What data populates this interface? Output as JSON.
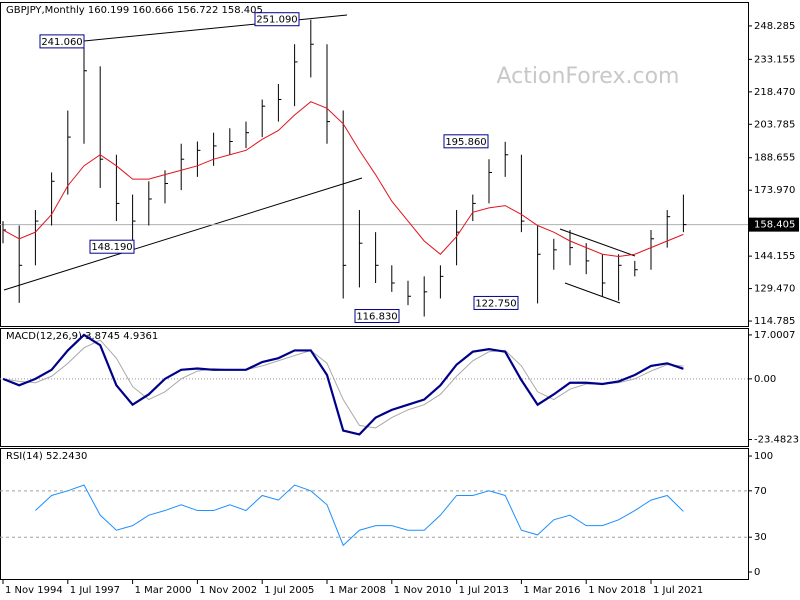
{
  "chart_data": [
    {
      "type": "ohlc",
      "title": "GBPJPY,Monthly  160.199 160.666 156.722 158.405",
      "watermark": "ActionForex.com",
      "color": "#000000",
      "categories": [
        "1 Nov 1994",
        null,
        null,
        null,
        "1 Jul 1997",
        null,
        null,
        null,
        "1 Mar 2000",
        null,
        null,
        null,
        "1 Nov 2002",
        null,
        null,
        null,
        "1 Jul 2005",
        null,
        null,
        null,
        "1 Mar 2008",
        null,
        null,
        null,
        "1 Nov 2010",
        null,
        null,
        null,
        "1 Jul 2013",
        null,
        null,
        null,
        "1 Mar 2016",
        null,
        null,
        null,
        "1 Nov 2018",
        null,
        null,
        null,
        "1 Jul 2021",
        null,
        null
      ],
      "high": [
        160,
        158,
        165,
        182,
        210,
        241.06,
        230,
        190,
        172,
        178,
        183,
        195,
        196,
        200,
        202,
        205,
        215,
        222,
        240,
        251.09,
        240,
        210,
        165,
        155,
        140,
        133,
        135,
        140,
        165,
        172,
        188,
        195.86,
        190,
        158,
        152,
        156,
        150,
        145,
        145,
        142,
        156,
        165,
        172
      ],
      "low": [
        150,
        123,
        140,
        158,
        172,
        195,
        175,
        160,
        148.19,
        158,
        168,
        174,
        180,
        185,
        190,
        193,
        198,
        205,
        212,
        225,
        195,
        125,
        130,
        132,
        128,
        122,
        116.83,
        125,
        140,
        160,
        168,
        180,
        155,
        122.75,
        138,
        140,
        136,
        126,
        124,
        135,
        138,
        148,
        155
      ],
      "close": [
        156,
        140,
        160,
        178,
        198,
        228,
        188,
        168,
        160,
        170,
        177,
        188,
        192,
        194,
        196,
        200,
        212,
        215,
        232,
        240,
        205,
        140,
        150,
        140,
        132,
        126,
        128,
        135,
        155,
        168,
        182,
        190,
        160,
        145,
        147,
        148,
        142,
        132,
        140,
        138,
        152,
        162,
        158.405
      ],
      "overlays": [
        {
          "color": "#e0141e",
          "values": [
            156,
            152,
            155,
            163,
            176,
            185,
            190,
            185,
            179,
            179,
            181,
            183,
            185,
            188,
            190,
            192,
            197,
            201,
            208,
            214,
            211,
            204,
            192,
            181,
            169,
            160,
            151,
            145,
            153,
            164,
            166,
            167,
            163,
            158,
            155,
            151,
            148,
            145,
            144,
            145,
            148,
            151,
            154
          ]
        }
      ],
      "last_price": 158.405,
      "annotations": [
        {
          "value": 241.06,
          "label": "241.060"
        },
        {
          "value": 251.09,
          "label": "251.090"
        },
        {
          "value": 148.19,
          "label": "148.190"
        },
        {
          "value": 195.86,
          "label": "195.860"
        },
        {
          "value": 116.83,
          "label": "116.830"
        },
        {
          "value": 122.75,
          "label": "122.750"
        }
      ],
      "ylim": [
        113.0,
        258.2
      ],
      "yticks": [
        248.285,
        233.155,
        {
          "value": 218.47,
          "label": "218.470"
        },
        203.785,
        188.655,
        {
          "value": 173.97,
          "label": "173.970"
        },
        144.155,
        {
          "value": 129.47,
          "label": "129.470"
        },
        114.785
      ]
    },
    {
      "type": "macd",
      "title": "MACD(12,26,9) 3.8745 4.9361",
      "series": [
        {
          "color": "#00008b",
          "values": [
            0,
            -2.5,
            0,
            3.5,
            11,
            17,
            13,
            -2.5,
            -10,
            -6,
            0,
            3.5,
            4,
            3.5,
            3.5,
            3.5,
            6.5,
            8,
            11,
            11,
            1.5,
            -20,
            -21.5,
            -15,
            -12,
            -10,
            -8,
            -2.5,
            5.5,
            10.5,
            11.5,
            10.5,
            -0.5,
            -10,
            -6,
            -1.5,
            -1.5,
            -2,
            -1,
            1.5,
            5,
            6,
            3.8745
          ]
        },
        {
          "color": "#a9a9a9",
          "values": [
            0,
            -1,
            -1.5,
            1,
            6,
            12,
            15,
            8,
            -3,
            -8,
            -5,
            0,
            3,
            4,
            3.5,
            3.5,
            5,
            7,
            9,
            11,
            6,
            -8,
            -18,
            -19,
            -15,
            -12,
            -10,
            -6,
            1,
            7,
            10.5,
            11,
            5,
            -5,
            -8,
            -4,
            -2,
            -2,
            -1.5,
            0,
            3,
            5.5,
            4.9361
          ]
        }
      ],
      "ylim": [
        -25.6,
        18.9
      ],
      "yticks": [
        17.0007,
        {
          "value": 0,
          "label": "0.00"
        },
        -23.4823
      ]
    },
    {
      "type": "line",
      "title": "RSI(14) 52.2430",
      "series": [
        {
          "color": "#1e90ff",
          "values": [
            null,
            null,
            53,
            66,
            70,
            75,
            49,
            36,
            40,
            49,
            53,
            58,
            53,
            53,
            58,
            53,
            66,
            62,
            75,
            70,
            58,
            23,
            36,
            40,
            40,
            36,
            36,
            49,
            66,
            66,
            70,
            66,
            36,
            32,
            45,
            49,
            40,
            40,
            45,
            53,
            62,
            66,
            52.243
          ]
        }
      ],
      "levels": [
        70,
        30
      ],
      "ylim": [
        -6.9,
        105.2
      ],
      "yticks": [
        100,
        70,
        30,
        0
      ]
    }
  ]
}
